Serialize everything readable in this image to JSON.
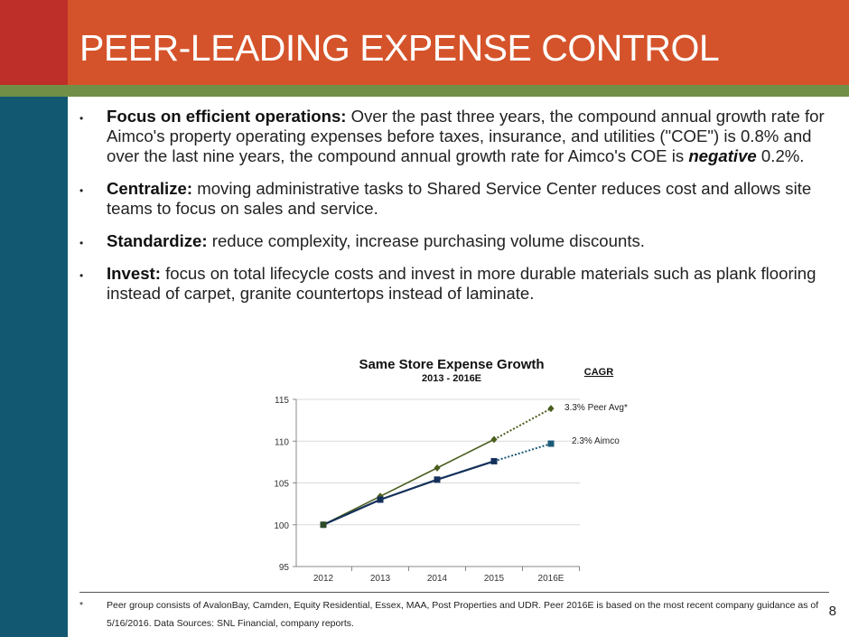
{
  "header": {
    "title": "PEER-LEADING EXPENSE CONTROL"
  },
  "bullets": [
    {
      "bold": "Focus on efficient operations:",
      "text1": " Over the past three years, the compound annual growth rate for Aimco's property operating expenses before taxes, insurance, and utilities (\"COE\") is 0.8% and over the last nine years, the compound annual growth rate for Aimco's COE is ",
      "italic": "negative",
      "text2": " 0.2%."
    },
    {
      "bold": "Centralize:",
      "text1": " moving administrative tasks to Shared Service Center reduces cost and allows site teams to focus on sales and service."
    },
    {
      "bold": "Standardize:",
      "text1": " reduce complexity, increase purchasing volume discounts."
    },
    {
      "bold": "Invest:",
      "text1": " focus on total lifecycle costs and invest in more durable materials such as plank flooring instead of carpet, granite countertops instead of laminate."
    }
  ],
  "chart_data": {
    "type": "line",
    "title": "Same Store Expense Growth",
    "subtitle": "2013 - 2016E",
    "legend_header": "CAGR",
    "categories": [
      "2012",
      "2013",
      "2014",
      "2015",
      "2016E"
    ],
    "ylim": [
      95,
      115
    ],
    "yticks": [
      "95",
      "100",
      "105",
      "110",
      "115"
    ],
    "grid": true,
    "series": [
      {
        "name": "3.3% Peer Avg*",
        "values": [
          100,
          103.4,
          106.8,
          110.2,
          113.9
        ],
        "color": "#4a5e1e",
        "marker": "diamond",
        "estimate_dotted_from": "2015"
      },
      {
        "name": "2.3% Aimco",
        "values": [
          100,
          103.0,
          105.4,
          107.6,
          109.7
        ],
        "color": "#14305a",
        "estimate_color": "#1c5a78",
        "marker": "square",
        "estimate_dotted_from": "2015"
      }
    ]
  },
  "footnote": {
    "marker": "*",
    "text": "Peer group consists of AvalonBay, Camden, Equity Residential, Essex, MAA, Post Properties and UDR. Peer 2016E is based on the most recent company guidance as of 5/16/2016. Data Sources: SNL Financial, company reports."
  },
  "page_number": "8"
}
